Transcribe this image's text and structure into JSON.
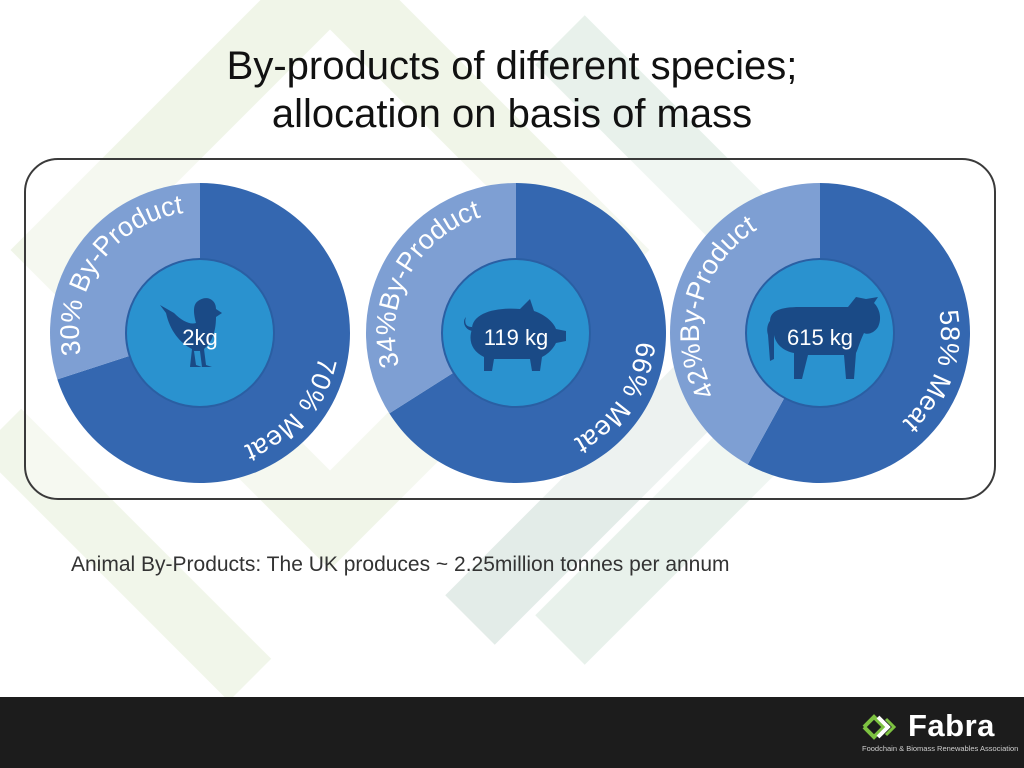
{
  "title_lines": [
    "By-products of different species;",
    "allocation on basis of mass"
  ],
  "chart_data": [
    {
      "type": "pie",
      "center_label": "2kg",
      "animal": "chicken",
      "slices": [
        {
          "label": "70% Meat",
          "value": 70
        },
        {
          "label": "30% By-Product",
          "value": 30
        }
      ]
    },
    {
      "type": "pie",
      "center_label": "119 kg",
      "animal": "pig",
      "slices": [
        {
          "label": "66% Meat",
          "value": 66
        },
        {
          "label": "34%By-Product",
          "value": 34
        }
      ]
    },
    {
      "type": "pie",
      "center_label": "615 kg",
      "animal": "cow",
      "slices": [
        {
          "label": "58% Meat",
          "value": 58
        },
        {
          "label": "42%By-Product",
          "value": 42
        }
      ]
    }
  ],
  "caption": "Animal By-Products: The UK produces ~ 2.25million tonnes per annum",
  "footer": {
    "logo_name": "Fabra",
    "logo_tagline": "Foodchain & Biomass Renewables Association"
  },
  "colors": {
    "meat": "#3467b0",
    "byproduct": "#7e9fd3",
    "center": "#2a92cf",
    "silhouette": "#1a4a86",
    "logo_green": "#7dc241"
  }
}
